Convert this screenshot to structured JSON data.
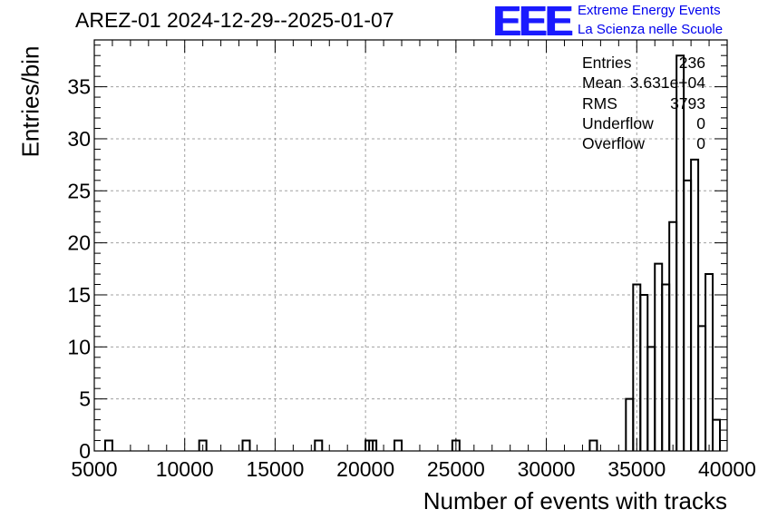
{
  "title": "AREZ-01 2024-12-29--2025-01-07",
  "logo": {
    "text": "EEE",
    "line1": "Extreme Energy Events",
    "line2": "La Scienza nelle Scuole",
    "color": "#1a1aff"
  },
  "stats": [
    {
      "label": "Entries",
      "value": "236"
    },
    {
      "label": "Mean",
      "value": "3.631e+04"
    },
    {
      "label": "RMS",
      "value": "3793"
    },
    {
      "label": "Underflow",
      "value": "0"
    },
    {
      "label": "Overflow",
      "value": "0"
    }
  ],
  "chart_data": {
    "type": "bar",
    "histogram": true,
    "xlabel": "Number of events with tracks",
    "ylabel": "Entries/bin",
    "xlim": [
      5000,
      40000
    ],
    "ylim": [
      0,
      39.5
    ],
    "bin_width": 400,
    "x_ticks": [
      5000,
      10000,
      15000,
      20000,
      25000,
      30000,
      35000,
      40000
    ],
    "y_ticks": [
      0,
      5,
      10,
      15,
      20,
      25,
      30,
      35
    ],
    "grid": true,
    "line_color": "#000000",
    "bins": [
      {
        "x": 5800,
        "value": 1
      },
      {
        "x": 11000,
        "value": 1
      },
      {
        "x": 13400,
        "value": 1
      },
      {
        "x": 17400,
        "value": 1
      },
      {
        "x": 20200,
        "value": 1
      },
      {
        "x": 20400,
        "value": 1
      },
      {
        "x": 21800,
        "value": 1
      },
      {
        "x": 25000,
        "value": 1
      },
      {
        "x": 32600,
        "value": 1
      },
      {
        "x": 34600,
        "value": 5
      },
      {
        "x": 35000,
        "value": 16
      },
      {
        "x": 35400,
        "value": 15
      },
      {
        "x": 35800,
        "value": 10
      },
      {
        "x": 36200,
        "value": 18
      },
      {
        "x": 36600,
        "value": 16
      },
      {
        "x": 37000,
        "value": 22
      },
      {
        "x": 37400,
        "value": 38
      },
      {
        "x": 37800,
        "value": 26
      },
      {
        "x": 38200,
        "value": 28
      },
      {
        "x": 38600,
        "value": 12
      },
      {
        "x": 39000,
        "value": 17
      },
      {
        "x": 39400,
        "value": 3
      }
    ]
  }
}
